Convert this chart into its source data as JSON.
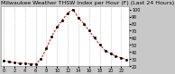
{
  "title": "Milwaukee Weather THSW Index per Hour (F) (Last 24 Hours)",
  "x_values": [
    0,
    1,
    2,
    3,
    4,
    5,
    6,
    7,
    8,
    9,
    10,
    11,
    12,
    13,
    14,
    15,
    16,
    17,
    18,
    19,
    20,
    21,
    22,
    23
  ],
  "y_values": [
    28,
    26,
    25,
    24,
    24,
    23,
    23,
    30,
    45,
    62,
    75,
    85,
    95,
    100,
    88,
    80,
    70,
    60,
    50,
    42,
    38,
    34,
    32,
    29
  ],
  "line_color": "#cc0000",
  "marker_color": "#000000",
  "bg_color": "#c8c8c8",
  "plot_bg_color": "#ffffff",
  "grid_color": "#aaaaaa",
  "text_color": "#000000",
  "ylim": [
    20,
    105
  ],
  "yticks": [
    20,
    30,
    40,
    50,
    60,
    70,
    80,
    90,
    100
  ],
  "xlim": [
    -0.5,
    23.5
  ],
  "xticks": [
    0,
    2,
    4,
    6,
    8,
    10,
    12,
    14,
    16,
    18,
    20,
    22
  ],
  "title_fontsize": 4.5,
  "tick_fontsize": 3.5
}
